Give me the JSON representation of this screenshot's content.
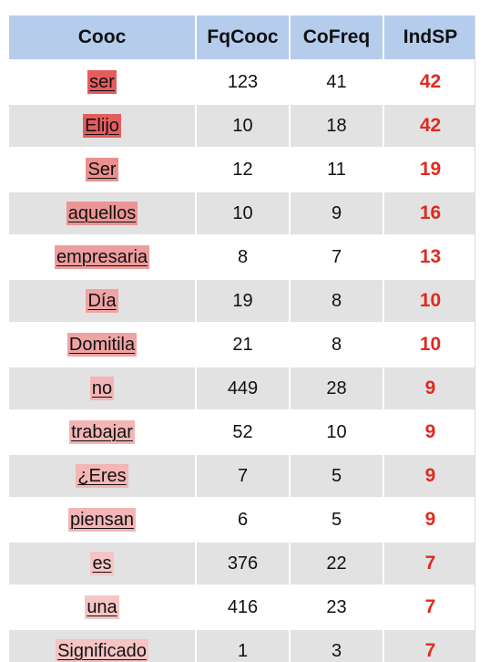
{
  "table": {
    "headers": [
      "Cooc",
      "FqCooc",
      "CoFreq",
      "IndSP"
    ],
    "rows": [
      {
        "word": "ser",
        "fq": "123",
        "cofreq": "41",
        "ind": "42",
        "highlight": "#e45d5d"
      },
      {
        "word": "Elijo",
        "fq": "10",
        "cofreq": "18",
        "ind": "42",
        "highlight": "#e45d5d"
      },
      {
        "word": "Ser",
        "fq": "12",
        "cofreq": "11",
        "ind": "19",
        "highlight": "#ec8f8f"
      },
      {
        "word": "aquellos",
        "fq": "10",
        "cofreq": "9",
        "ind": "16",
        "highlight": "#ec9494"
      },
      {
        "word": "empresaria",
        "fq": "8",
        "cofreq": "7",
        "ind": "13",
        "highlight": "#ee9d9d"
      },
      {
        "word": "Día",
        "fq": "19",
        "cofreq": "8",
        "ind": "10",
        "highlight": "#efa3a3"
      },
      {
        "word": "Domitila",
        "fq": "21",
        "cofreq": "8",
        "ind": "10",
        "highlight": "#efa3a3"
      },
      {
        "word": "no",
        "fq": "449",
        "cofreq": "28",
        "ind": "9",
        "highlight": "#f3b5b5"
      },
      {
        "word": "trabajar",
        "fq": "52",
        "cofreq": "10",
        "ind": "9",
        "highlight": "#f3b5b5"
      },
      {
        "word": "¿Eres",
        "fq": "7",
        "cofreq": "5",
        "ind": "9",
        "highlight": "#f3b5b5"
      },
      {
        "word": "piensan",
        "fq": "6",
        "cofreq": "5",
        "ind": "9",
        "highlight": "#f3b5b5"
      },
      {
        "word": "es",
        "fq": "376",
        "cofreq": "22",
        "ind": "7",
        "highlight": "#f6c4c4"
      },
      {
        "word": "una",
        "fq": "416",
        "cofreq": "23",
        "ind": "7",
        "highlight": "#f6c4c4"
      },
      {
        "word": "Significado",
        "fq": "1",
        "cofreq": "3",
        "ind": "7",
        "highlight": "#f6c4c4"
      }
    ]
  }
}
